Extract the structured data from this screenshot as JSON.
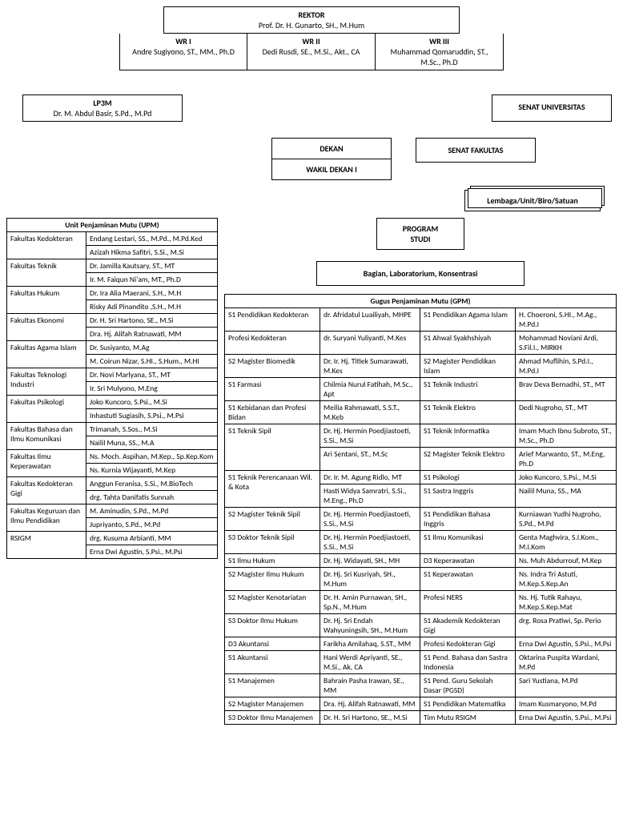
{
  "rektor": {
    "title": "REKTOR",
    "name": "Prof. Dr. H. Gunarto, SH., M.Hum"
  },
  "wr1": {
    "title": "WR I",
    "name": "Andre Sugiyono, ST., MM., Ph.D"
  },
  "wr2": {
    "title": "WR II",
    "name": "Dedi Rusdi, SE., M.Si., Akt., CA"
  },
  "wr3": {
    "title": "WR III",
    "name": "Muhammad Qomaruddin, ST., M.Sc., Ph.D"
  },
  "lp3m": {
    "title": "LP3M",
    "name": "Dr. M. Abdul Basir, S.Pd., M.Pd"
  },
  "senat_univ": "SENAT UNIVERSITAS",
  "dekan": "DEKAN",
  "wakil_dekan": "WAKIL DEKAN  I",
  "senat_fak": "SENAT FAKULTAS",
  "lembaga": "Lembaga/Unit/Biro/Satuan",
  "program_studi": "PROGRAM STUDI",
  "bagian": "Bagian, Laboratorium, Konsentrasi",
  "upm_header": "Unit Penjaminan Mutu (UPM)",
  "upm_rows": [
    {
      "fac": "Fakultas Kedokteran",
      "names": [
        "Endang Lestari, SS., M.Pd., M.Pd.Ked",
        "Azizah Hikma Safitri, S.Si., M.Si"
      ]
    },
    {
      "fac": "Fakultas Teknik",
      "names": [
        "Dr. Jamilla Kautsary, ST., MT",
        "Ir. M. Faiqun Ni'am, MT., Ph.D"
      ]
    },
    {
      "fac": "Fakultas Hukum",
      "names": [
        "Dr. Ira Alia Maerani, S.H., M.H",
        "Risky Adi Pinandito ,S.H., M.H"
      ]
    },
    {
      "fac": "Fakultas Ekonomi",
      "names": [
        "Dr. H. Sri Hartono, SE., M.Si",
        "Dra. Hj. Alifah Ratnawati, MM"
      ]
    },
    {
      "fac": "Fakultas Agama Islam",
      "names": [
        "Dr. Susiyanto, M.Ag",
        "M. Coirun Nizar, S.HI., S.Hum., M.HI"
      ]
    },
    {
      "fac": "Fakultas Teknologi Industri",
      "names": [
        "Dr. Novi Marlyana, ST., MT",
        "Ir. Sri Mulyono, M.Eng"
      ]
    },
    {
      "fac": "Fakultas Psikologi",
      "names": [
        "Joko Kuncoro, S.Psi., M.Si",
        "Inhastuti Sugiasih, S.Psi., M.Psi"
      ]
    },
    {
      "fac": "Fakultas Bahasa dan Ilmu Komunikasi",
      "names": [
        "Trimanah, S.Sos., M.Si",
        "Nailil Muna, SS., M.A"
      ]
    },
    {
      "fac": "Fakultas Ilmu Keperawatan",
      "names": [
        "Ns. Moch. Aspihan, M.Kep., Sp.Kep.Kom",
        "Ns. Kurnia Wijayanti, M.Kep"
      ]
    },
    {
      "fac": "Fakultas Kedokteran Gigi",
      "names": [
        "Anggun Feranisa, S.Si., M.BioTech",
        "drg. Tahta Danifatis Sunnah"
      ]
    },
    {
      "fac": "Fakultas Keguruan dan Ilmu Pendidikan",
      "names": [
        "M. Aminudin, S.Pd., M.Pd",
        "Jupriyanto, S.Pd., M.Pd"
      ]
    },
    {
      "fac": "RSIGM",
      "names": [
        "drg. Kusuma Arbianti, MM",
        "Erna Dwi Agustin, S.Psi., M.Psi"
      ]
    }
  ],
  "gpm_header": "Gugus Penjaminan Mutu (GPM)",
  "gpm_rows": [
    [
      "S1 Pendidikan Kedokteran",
      "dr. Afridatul Luailiyah, MHPE",
      "S1 Pendidikan Agama Islam",
      "H. Choeroni, S.HI., M.Ag., M.Pd.I"
    ],
    [
      "Profesi Kedokteran",
      "dr. Suryani Yuliyanti, M.Kes",
      "S1 Ahwal Syakhshiyah",
      "Mohammad Noviani Ardi, S.Fil.I., MIRKH"
    ],
    [
      "S2 Magister Biomedik",
      "Dr. Ir. Hj. Titiek Sumarawati, M.Kes",
      "S2 Magister Pendidikan Islam",
      "Ahmad Muflihin, S.Pd.I., M.Pd.I"
    ],
    [
      "S1 Farmasi",
      "Chilmia Nurul Fatihah, M.Sc., Apt",
      "S1 Teknik Industri",
      "Brav Deva Bernadhi, ST., MT"
    ],
    [
      "S1 Kebidanan dan Profesi Bidan",
      "Meilia Rahmawati, S.S.T., M.Keb",
      "S1 Teknik Elektro",
      "Dedi Nugroho, ST., MT"
    ],
    [
      "S1 Teknik Sipil",
      "Dr. Hj. Hermin Poedjiastoeti, S.Si., M.Si",
      "S1 Teknik Informatika",
      "Imam Much Ibnu Subroto, ST., M.Sc., Ph.D"
    ],
    [
      "",
      "Ari Sentani, ST., M.Sc",
      "S2 Magister Teknik Elektro",
      "Arief Marwanto, ST., M.Eng, Ph.D"
    ],
    [
      "S1 Teknik Perencanaan Wil. & Kota",
      "Dr. Ir. M. Agung Ridlo, MT",
      "S1 Psikologi",
      "Joko Kuncoro, S.Psi., M.Si"
    ],
    [
      "",
      "Hasti Widya Samratri, S.Si., M.Eng., Ph.D",
      "S1 Sastra Inggris",
      "Nailil Muna, SS., MA"
    ],
    [
      "S2 Magister Teknik Sipil",
      "Dr. Hj. Hermin Poedjiastoeti, S.Si., M.Si",
      "S1 Pendidikan Bahasa Inggris",
      "Kurniawan Yudhi Nugroho, S.Pd., M.Pd"
    ],
    [
      "S3 Doktor Teknik Sipil",
      "Dr. Hj. Hermin Poedjiastoeti, S.Si., M.Si",
      "S1 Ilmu Komunikasi",
      "Genta Maghvira, S.I.Kom., M.I.Kom"
    ],
    [
      "S1 Ilmu Hukum",
      "Dr. Hj. Widayati, SH., MH",
      "D3 Keperawatan",
      "Ns. Muh Abdurrouf, M.Kep"
    ],
    [
      "S2 Magister Ilmu Hukum",
      "Dr. Hj. Sri Kusriyah, SH., M.Hum",
      "S1 Keperawatan",
      "Ns. Indra Tri Astuti, M.Kep.S.Kep.An"
    ],
    [
      "S2 Magister Kenotariatan",
      "Dr. H. Amin Purnawan, SH., Sp.N., M.Hum",
      "Profesi NERS",
      "Ns. Hj. Tutik Rahayu, M.Kep.S.Kep.Mat"
    ],
    [
      "S3 Doktor Ilmu Hukum",
      "Dr. Hj. Sri Endah Wahyuningsih, SH., M.Hum",
      "S1 Akademik Kedokteran Gigi",
      "drg. Rosa Pratiwi, Sp. Perio"
    ],
    [
      "D3 Akuntansi",
      "Farikha Amilahaq, S.ST., MM",
      "Profesi Kedokteran Gigi",
      "Erna Dwi Agustin, S.Psi., M.Psi"
    ],
    [
      "S1 Akuntansi",
      "Hani Werdi Apriyanti, SE., M.Si., Ak, CA",
      "S1 Pend. Bahasa dan Sastra Indonesia",
      "Oktarina Puspita Wardani, M.Pd"
    ],
    [
      "S1 Manajemen",
      "Bahrain Pasha Irawan, SE., MM",
      "S1 Pend. Guru Sekolah Dasar (PGSD)",
      "Sari Yustiana, M.Pd"
    ],
    [
      "S2 Magister Manajemen",
      "Dra. Hj. Alifah Ratnawati, MM",
      "S1 Pendidikan Matematika",
      "Imam Kusmaryono, M.Pd"
    ],
    [
      "S3 Doktor Ilmu Manajemen",
      "Dr. H. Sri Hartono, SE., M.Si",
      "Tim Mutu RSIGM",
      "Erna Dwi Agustin, S.Psi., M.Psi"
    ]
  ]
}
